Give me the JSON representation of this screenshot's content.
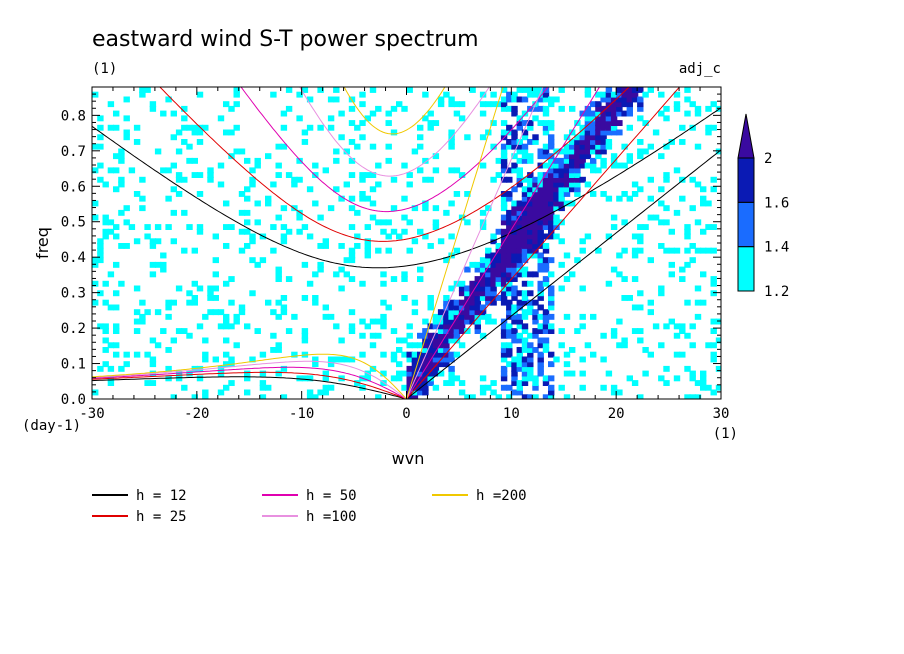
{
  "chart_data": {
    "type": "heatmap",
    "title": "eastward wind S-T power spectrum",
    "subtitle_left": "(1)",
    "subtitle_right": "adj_c",
    "xlabel": "wvn",
    "ylabel": "freq",
    "x_unit": "(1)",
    "y_unit": "(day-1)",
    "xlim": [
      -30,
      30
    ],
    "ylim": [
      0,
      0.88
    ],
    "xticks": [
      -30,
      -20,
      -10,
      0,
      10,
      20,
      30
    ],
    "xtick_labels": [
      "-30",
      "-20",
      "-10",
      "0",
      "10",
      "20",
      "30"
    ],
    "yticks": [
      0,
      0.1,
      0.2,
      0.3,
      0.4,
      0.5,
      0.6,
      0.7,
      0.8
    ],
    "ytick_labels": [
      "0.0",
      "0.1",
      "0.2",
      "0.3",
      "0.4",
      "0.5",
      "0.6",
      "0.7",
      "0.8"
    ],
    "colorbar": {
      "levels": [
        1.2,
        1.4,
        1.6,
        2
      ],
      "labels": [
        "1.2",
        "1.4",
        "1.6",
        "2"
      ],
      "colors": [
        "#00ffff",
        "#1a6cff",
        "#0a1ab4",
        "#3a0aa0"
      ],
      "extend": "max"
    },
    "dispersion_curves": [
      {
        "label": "h = 12",
        "h": 12,
        "color": "#000000"
      },
      {
        "label": "h = 25",
        "h": 25,
        "color": "#e00000"
      },
      {
        "label": "h = 50",
        "h": 50,
        "color": "#e000b0"
      },
      {
        "label": "h =100",
        "h": 100,
        "color": "#e890e0"
      },
      {
        "label": "h =200",
        "h": 200,
        "color": "#f0c800"
      }
    ],
    "grid": false
  }
}
